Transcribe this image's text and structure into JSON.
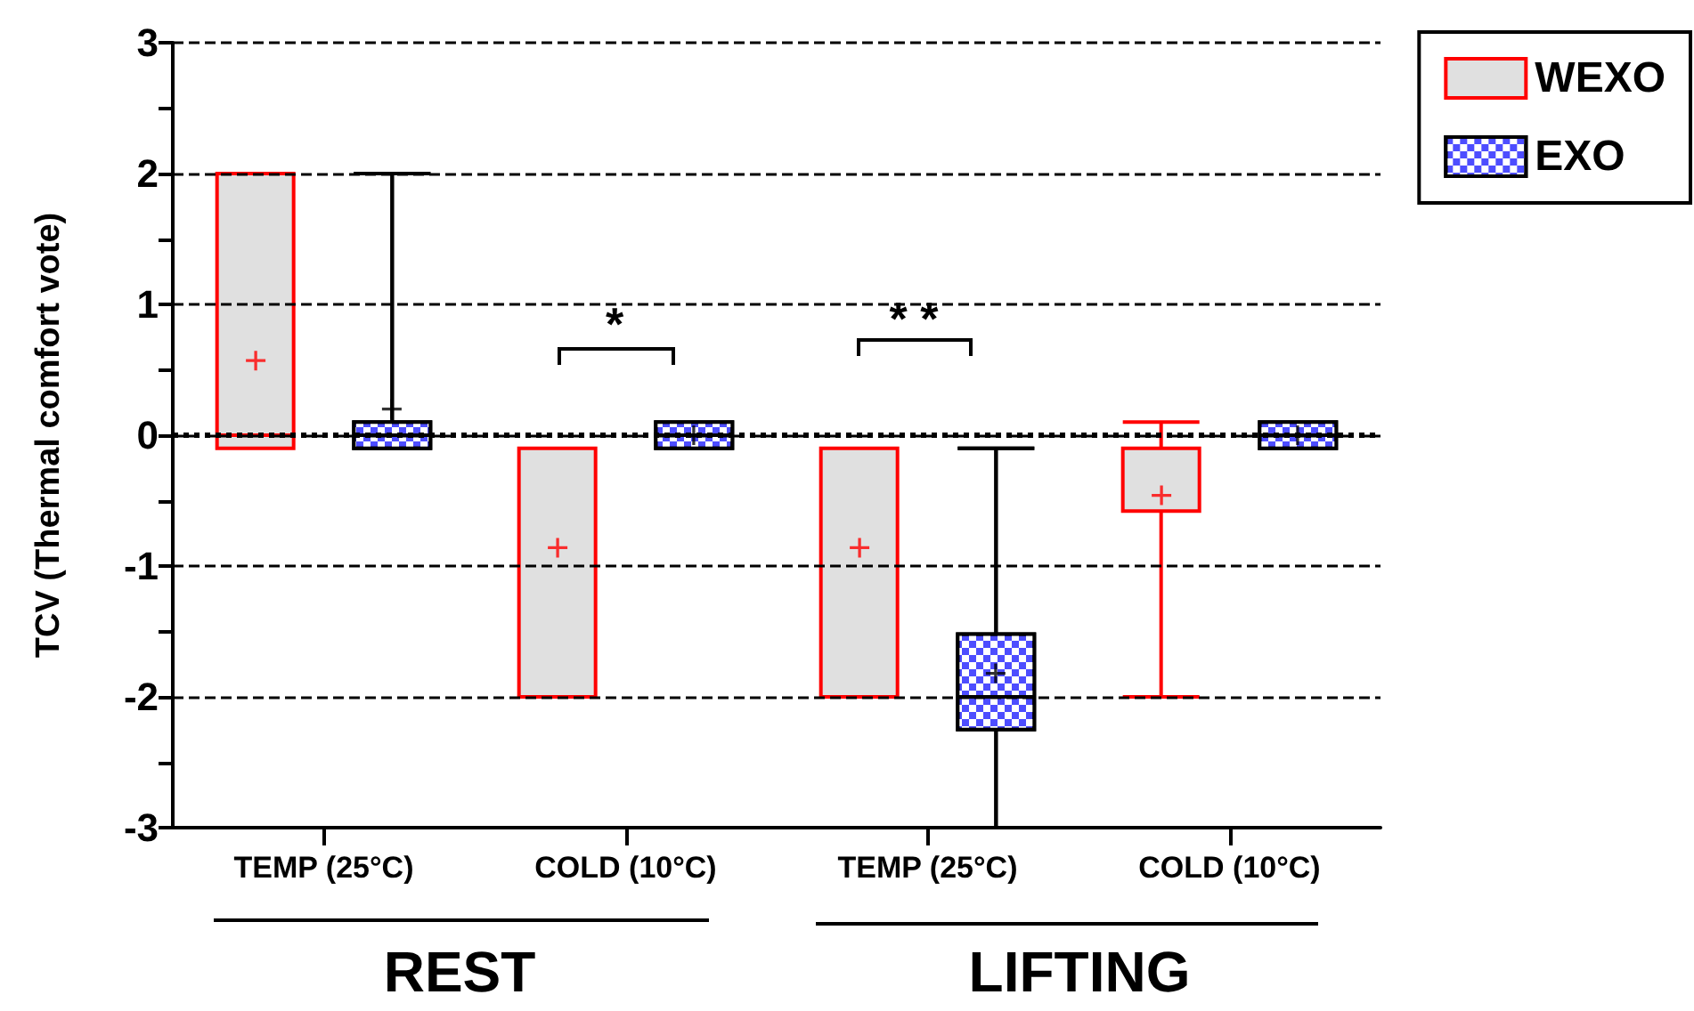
{
  "chart_data": {
    "type": "box",
    "ylabel": "TCV (Thermal comfort vote)",
    "categories": [
      "TEMP (25°C)",
      "COLD (10°C)",
      "TEMP (25°C)",
      "COLD (10°C)"
    ],
    "series": [
      {
        "name": "WEXO",
        "color": "#e0e0e0",
        "boxes": [
          {
            "low": -0.1,
            "q1": -0.1,
            "median": 0,
            "q3": 2,
            "high": 2,
            "mean": 0.57
          },
          {
            "low": -2,
            "q1": -2,
            "median": -0.1,
            "q3": -0.1,
            "high": -0.1,
            "mean": -0.86
          },
          {
            "low": -2,
            "q1": -2,
            "median": -0.1,
            "q3": -0.1,
            "high": -0.1,
            "mean": -0.86
          },
          {
            "low": -2,
            "q1": -0.58,
            "median": -0.1,
            "q3": -0.1,
            "high": 0.1,
            "mean": -0.46
          }
        ]
      },
      {
        "name": "EXO",
        "color": "#4d4dff",
        "boxes": [
          {
            "low": -0.1,
            "q1": -0.1,
            "median": 0,
            "q3": 0.1,
            "high": 2,
            "mean": 0.2
          },
          {
            "low": -0.1,
            "q1": -0.1,
            "median": 0,
            "q3": 0.1,
            "high": 0.1,
            "mean": 0
          },
          {
            "low": -3,
            "q1": -2.25,
            "median": -2,
            "q3": -1.52,
            "high": -0.1,
            "mean": -1.82
          },
          {
            "low": -0.1,
            "q1": -0.1,
            "median": 0,
            "q3": 0.1,
            "high": 0.1,
            "mean": 0
          }
        ]
      }
    ],
    "ylim": [
      -3,
      3
    ],
    "yticks": [
      -3,
      {
        "value": -2.5,
        "label": null
      },
      -2,
      {
        "value": -1.5,
        "label": null
      },
      -1,
      {
        "value": -0.5,
        "label": null
      },
      0,
      {
        "value": 0.5,
        "label": null
      },
      1,
      {
        "value": 1.5,
        "label": null
      },
      2,
      {
        "value": 2.5,
        "label": null
      },
      3
    ],
    "grid": "y",
    "legend": "top right",
    "ref_lines": [
      {
        "axis": "y",
        "value": 0,
        "color": "#000000",
        "line_style": "dotted"
      }
    ],
    "annotations": [
      "*",
      "* *",
      "REST",
      "LIFTING"
    ]
  }
}
